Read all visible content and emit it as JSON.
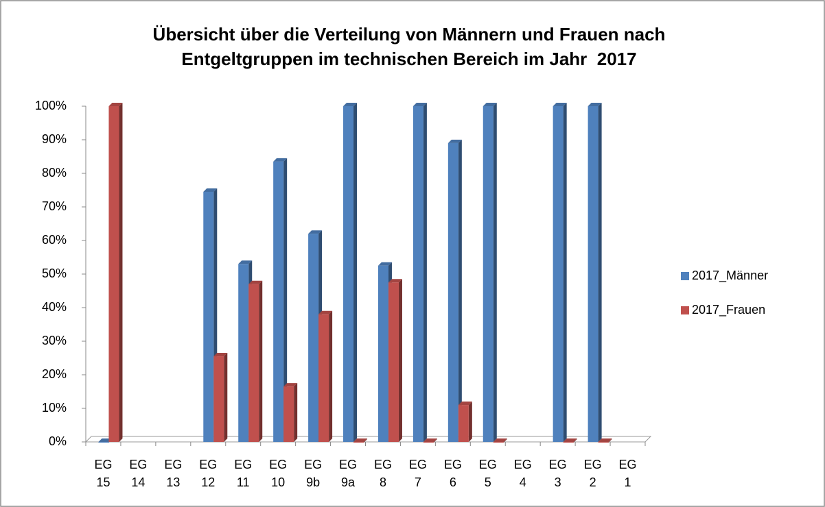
{
  "chart_data": {
    "type": "bar",
    "title": [
      "Übersicht über die Verteilung von Männern und Frauen nach",
      "Entgeltgruppen im technischen Bereich im Jahr  2017"
    ],
    "categories": [
      "EG 15",
      "EG 14",
      "EG 13",
      "EG 12",
      "EG 11",
      "EG 10",
      "EG 9b",
      "EG 9a",
      "EG 8",
      "EG 7",
      "EG 6",
      "EG 5",
      "EG 4",
      "EG 3",
      "EG 2",
      "EG 1"
    ],
    "series": [
      {
        "name": "2017_Männer",
        "color": "#4f81bd",
        "values": [
          0,
          null,
          null,
          74.5,
          53,
          83.5,
          62,
          100,
          52.5,
          100,
          89,
          100,
          null,
          100,
          100,
          null
        ]
      },
      {
        "name": "2017_Frauen",
        "color": "#c0504d",
        "values": [
          100,
          null,
          null,
          25.5,
          47,
          16.5,
          38,
          0,
          47.5,
          0,
          11,
          0,
          null,
          0,
          0,
          null
        ]
      }
    ],
    "ylim": [
      0,
      100
    ],
    "yticks": [
      {
        "value": 0,
        "label": "0%"
      },
      {
        "value": 10,
        "label": "10%"
      },
      {
        "value": 20,
        "label": "20%"
      },
      {
        "value": 30,
        "label": "30%"
      },
      {
        "value": 40,
        "label": "40%"
      },
      {
        "value": 50,
        "label": "50%"
      },
      {
        "value": 60,
        "label": "60%"
      },
      {
        "value": 70,
        "label": "70%"
      },
      {
        "value": 80,
        "label": "80%"
      },
      {
        "value": 90,
        "label": "90%"
      },
      {
        "value": 100,
        "label": "100%"
      }
    ],
    "legend": "right"
  }
}
